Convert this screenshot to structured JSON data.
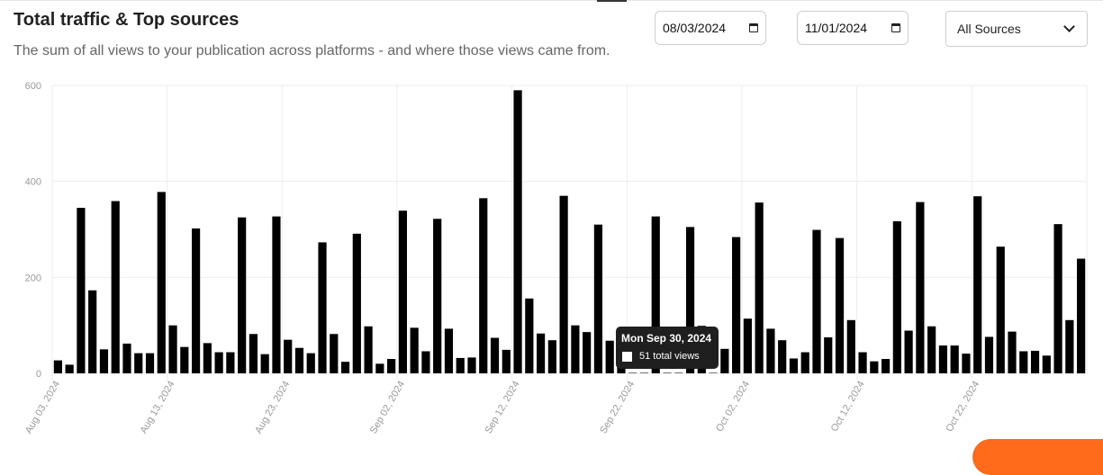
{
  "header": {
    "title": "Total traffic & Top sources",
    "subtitle": "The sum of all views to your publication across platforms - and where those views came from."
  },
  "filters": {
    "start_date": "08/03/2024",
    "end_date": "11/01/2024",
    "source": "All Sources"
  },
  "tooltip": {
    "date": "Mon Sep 30, 2024",
    "label": "51 total views"
  },
  "colors": {
    "bar": "#000000",
    "grid": "#eeeeee",
    "accent": "#ff6b1a"
  },
  "chart_data": {
    "type": "bar",
    "xlabel": "",
    "ylabel": "",
    "ylim": [
      0,
      600
    ],
    "yticks": [
      0,
      200,
      400,
      600
    ],
    "grid": true,
    "legend": "none",
    "xtick_labels": [
      "Aug 03, 2024",
      "Aug 13, 2024",
      "Aug 23, 2024",
      "Sep 02, 2024",
      "Sep 12, 2024",
      "Sep 22, 2024",
      "Oct 02, 2024",
      "Oct 12, 2024",
      "Oct 22, 2024"
    ],
    "series": [
      {
        "name": "total views",
        "start_date": "2024-08-03",
        "values": [
          27,
          18,
          345,
          173,
          50,
          359,
          62,
          42,
          42,
          378,
          100,
          55,
          302,
          63,
          44,
          44,
          325,
          82,
          40,
          327,
          70,
          53,
          42,
          273,
          82,
          24,
          291,
          98,
          20,
          30,
          339,
          95,
          46,
          322,
          93,
          32,
          33,
          365,
          74,
          49,
          590,
          156,
          83,
          69,
          370,
          100,
          86,
          310,
          68,
          51,
          1,
          1,
          327,
          1,
          1,
          305,
          99,
          1,
          51,
          284,
          114,
          356,
          93,
          69,
          31,
          44,
          299,
          75,
          282,
          111,
          44,
          25,
          30,
          317,
          89,
          357,
          98,
          58,
          58,
          41,
          369,
          76,
          264,
          87,
          46,
          47,
          37,
          311,
          111,
          239
        ]
      }
    ]
  }
}
